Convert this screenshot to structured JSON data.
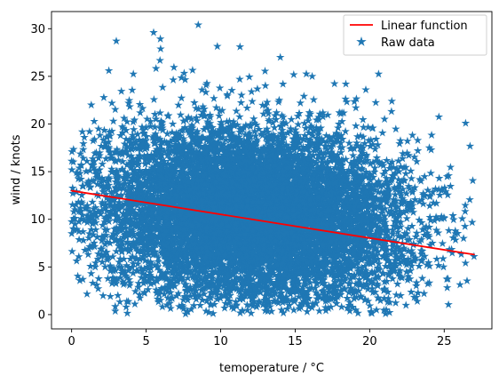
{
  "chart_data": {
    "type": "scatter",
    "xlabel": "temoperature / °C",
    "ylabel": "wind / knots",
    "xlim": [
      -1.35,
      28.2
    ],
    "ylim": [
      -1.5,
      31.8
    ],
    "xticks": [
      0,
      5,
      10,
      15,
      20,
      25
    ],
    "yticks": [
      0,
      5,
      10,
      15,
      20,
      25,
      30
    ],
    "grid": false,
    "legend_position": "top-right",
    "series": [
      {
        "name": "Raw data",
        "kind": "scatter",
        "marker": "star",
        "color": "#1f77b4",
        "n_points": 9000,
        "x_range": [
          0,
          27
        ],
        "y_range": [
          0,
          30.4
        ],
        "density_peak": {
          "x": 12,
          "y": 9
        },
        "sample_points": [
          {
            "x": 0.0,
            "y": 8.5
          },
          {
            "x": 0.0,
            "y": 16.1
          },
          {
            "x": 1.2,
            "y": 19.2
          },
          {
            "x": 2.5,
            "y": 25.6
          },
          {
            "x": 3.0,
            "y": 28.7
          },
          {
            "x": 5.5,
            "y": 29.6
          },
          {
            "x": 8.5,
            "y": 30.4
          },
          {
            "x": 11.3,
            "y": 28.1
          },
          {
            "x": 14.0,
            "y": 27.0
          },
          {
            "x": 18.4,
            "y": 24.2
          },
          {
            "x": 21.0,
            "y": 20.5
          },
          {
            "x": 24.0,
            "y": 17.5
          },
          {
            "x": 25.0,
            "y": 10.1
          },
          {
            "x": 26.3,
            "y": 8.0
          },
          {
            "x": 27.0,
            "y": 6.1
          },
          {
            "x": 9.5,
            "y": 0.1
          },
          {
            "x": 15.8,
            "y": 0.3
          },
          {
            "x": 2.6,
            "y": 1.9
          }
        ]
      },
      {
        "name": "Linear function",
        "kind": "line",
        "color": "#ff0000",
        "x": [
          0,
          27
        ],
        "y": [
          13.0,
          6.3
        ]
      }
    ]
  }
}
